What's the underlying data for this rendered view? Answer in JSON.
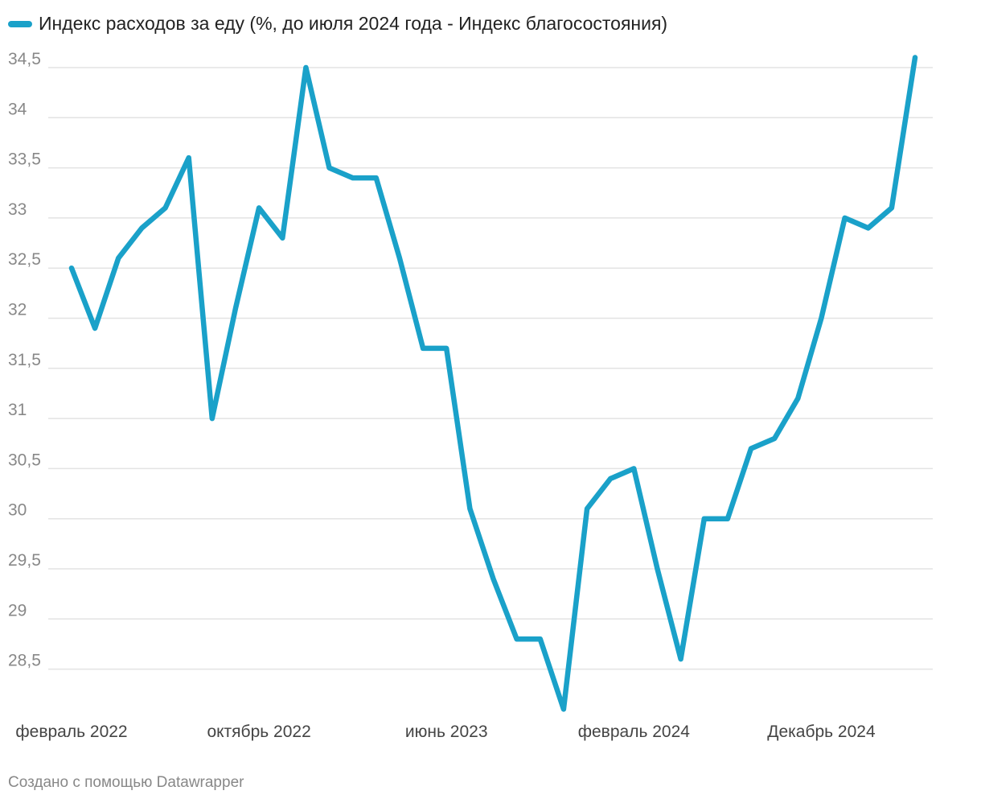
{
  "chart_data": {
    "type": "line",
    "series": [
      {
        "name": "Индекс расходов за еду (%, до июля 2024 года - Индекс благосостояния)",
        "color": "#1aa1c9",
        "values": [
          32.5,
          31.9,
          32.6,
          32.9,
          33.1,
          33.6,
          31.0,
          32.1,
          33.1,
          32.8,
          34.5,
          33.5,
          33.4,
          33.4,
          32.6,
          31.7,
          31.7,
          30.1,
          29.4,
          28.8,
          28.8,
          28.1,
          30.1,
          30.4,
          30.5,
          29.5,
          28.6,
          30.0,
          30.0,
          30.7,
          30.8,
          31.2,
          32.0,
          33.0,
          32.9,
          33.1,
          34.6
        ]
      }
    ],
    "y_ticks": [
      "34,5",
      "34",
      "33,5",
      "33",
      "32,5",
      "32",
      "31,5",
      "31",
      "30,5",
      "30",
      "29,5",
      "29",
      "28,5"
    ],
    "y_tick_values": [
      34.5,
      34,
      33.5,
      33,
      32.5,
      32,
      31.5,
      31,
      30.5,
      30,
      29.5,
      29,
      28.5
    ],
    "x_ticks": [
      {
        "label": "февраль 2022",
        "index": 0
      },
      {
        "label": "октябрь 2022",
        "index": 8
      },
      {
        "label": "июнь 2023",
        "index": 16
      },
      {
        "label": "февраль 2024",
        "index": 24
      },
      {
        "label": "Декабрь 2024",
        "index": 32
      }
    ],
    "ylim": [
      28.1,
      34.6
    ],
    "legend": "top-left"
  },
  "legend_label": "Индекс расходов за еду (%, до июля 2024 года - Индекс благосостояния)",
  "footer": "Создано с помощью Datawrapper",
  "colors": {
    "line": "#1aa1c9",
    "grid": "#e3e3e3"
  }
}
